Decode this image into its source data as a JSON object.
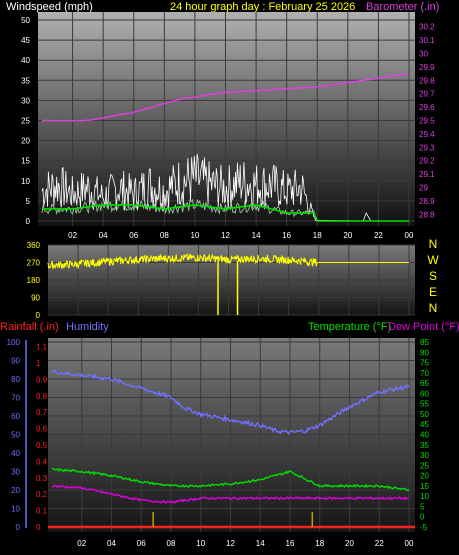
{
  "header": {
    "windspeed_label": "Windspeed (mph)",
    "title": "24 hour graph day : February 25 2026",
    "barometer_label": "Barometer (.in)"
  },
  "colors": {
    "windspeed": "#ffffff",
    "wind_avg": "#00e000",
    "barometer": "#e040e0",
    "direction": "#ffff00",
    "humidity": "#7070ff",
    "temperature": "#00e000",
    "dewpoint": "#e000e0",
    "rain": "#ff2020",
    "title": "#ffff00"
  },
  "chart_data": [
    {
      "type": "line",
      "panel": "wind-barometer",
      "x_ticks": [
        "02",
        "04",
        "06",
        "08",
        "10",
        "12",
        "14",
        "16",
        "18",
        "20",
        "22",
        "00"
      ],
      "ylim": [
        0,
        50
      ],
      "y_ticks": [
        0,
        5,
        10,
        15,
        20,
        25,
        30,
        35,
        40,
        45,
        50
      ],
      "y2lim": [
        28.75,
        30.25
      ],
      "y2_ticks": [
        "28.8",
        "28.9",
        "29",
        "29.1",
        "29.2",
        "29.3",
        "29.4",
        "29.5",
        "29.6",
        "29.7",
        "29.8",
        "29.9",
        "30",
        "30.1",
        "30.2"
      ],
      "series": [
        {
          "name": "Barometer",
          "axis": "right",
          "x": [
            0,
            3,
            6,
            9,
            12,
            15,
            18,
            21,
            24
          ],
          "values": [
            29.5,
            29.5,
            29.56,
            29.66,
            29.71,
            29.73,
            29.75,
            29.8,
            29.85
          ]
        },
        {
          "name": "Gust",
          "axis": "left",
          "x": [
            0,
            1,
            2,
            3,
            4,
            5,
            6,
            7,
            8,
            9,
            10,
            11,
            12,
            13,
            14,
            15,
            16,
            17,
            17.9,
            21,
            21.2,
            21.6
          ],
          "values": [
            10,
            12,
            9,
            11,
            8,
            11,
            9,
            12,
            10,
            13,
            14,
            12,
            11,
            13,
            12,
            12,
            10,
            11,
            0,
            0,
            2,
            0
          ]
        },
        {
          "name": "Average",
          "axis": "left",
          "x": [
            0,
            2,
            4,
            6,
            8,
            10,
            12,
            14,
            16,
            17.9,
            18
          ],
          "values": [
            3,
            3,
            4,
            4,
            3,
            4,
            3,
            4,
            2,
            2,
            0
          ]
        }
      ]
    },
    {
      "type": "line",
      "panel": "wind-direction",
      "x_ticks": [
        "02",
        "04",
        "06",
        "08",
        "10",
        "12",
        "14",
        "16",
        "18",
        "20",
        "22",
        "00"
      ],
      "y_ticks": [
        0,
        90,
        180,
        270,
        360
      ],
      "ylim": [
        0,
        360
      ],
      "compass_labels": [
        "N",
        "W",
        "S",
        "E",
        "N"
      ],
      "series": [
        {
          "name": "Direction",
          "x": [
            0,
            2,
            4,
            6,
            8,
            10,
            12,
            14,
            16,
            18,
            20,
            22,
            24
          ],
          "values": [
            255,
            262,
            275,
            285,
            292,
            295,
            285,
            290,
            283,
            270,
            270,
            270,
            270
          ]
        }
      ]
    },
    {
      "type": "line",
      "panel": "rain-humidity-temp",
      "left_labels": [
        "Rainfall (.in)",
        "Humidity"
      ],
      "right_labels": [
        "Temperature (°F)",
        "Dew Point (°F)"
      ],
      "x_ticks": [
        "02",
        "04",
        "06",
        "08",
        "10",
        "12",
        "14",
        "16",
        "18",
        "20",
        "22",
        "00"
      ],
      "humidity_ticks": [
        0,
        10,
        20,
        30,
        40,
        50,
        60,
        70,
        80,
        90,
        100
      ],
      "rain_ticks": [
        "0",
        "0.1",
        "0.2",
        "0.3",
        "0.4",
        "0.5",
        "0.6",
        "0.7",
        "0.8",
        "0.9",
        "1",
        "1.1"
      ],
      "temp_ticks": [
        -5,
        0,
        5,
        10,
        15,
        20,
        25,
        30,
        35,
        40,
        45,
        50,
        55,
        60,
        65,
        70,
        75,
        80,
        85
      ],
      "humidity_ylim": [
        0,
        100
      ],
      "temp_ylim": [
        -5,
        85
      ],
      "series": [
        {
          "name": "Humidity",
          "axis": "humidity",
          "x": [
            0,
            2,
            4,
            6,
            8,
            9,
            10,
            12,
            14,
            15,
            16,
            17,
            18,
            20,
            22,
            24
          ],
          "values": [
            84,
            82,
            80,
            75,
            70,
            64,
            61,
            58,
            55,
            52,
            51,
            52,
            55,
            65,
            73,
            76
          ]
        },
        {
          "name": "Temperature",
          "axis": "temp",
          "x": [
            0,
            2,
            4,
            6,
            8,
            10,
            12,
            14,
            16,
            18,
            20,
            22,
            24
          ],
          "values": [
            23,
            22,
            20,
            17,
            15,
            15,
            16,
            18,
            22,
            15,
            15,
            15,
            13
          ]
        },
        {
          "name": "Dew Point",
          "axis": "temp",
          "x": [
            0,
            2,
            4,
            6,
            8,
            10,
            12,
            14,
            16,
            18,
            20,
            22,
            24
          ],
          "values": [
            15,
            14,
            11,
            8,
            7,
            9,
            9,
            9,
            9,
            9,
            9,
            9,
            9
          ]
        },
        {
          "name": "Rain",
          "axis": "rain",
          "x": [
            0,
            24
          ],
          "values": [
            0,
            0
          ]
        }
      ]
    }
  ]
}
